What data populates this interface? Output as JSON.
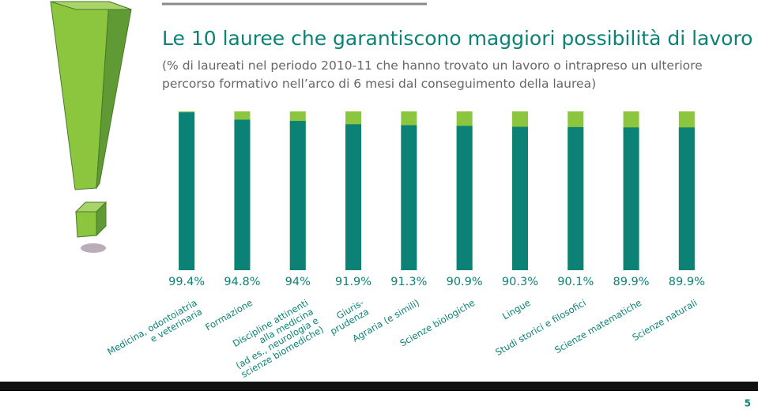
{
  "chart_data": {
    "type": "bar",
    "title": "Le 10 lauree che garantiscono maggiori possibilità di lavoro",
    "subtitle": "(% di laureati nel periodo 2010-11 che hanno trovato un lavoro o intrapreso un ulteriore percorso formativo nell’arco di 6 mesi dal conseguimento della laurea)",
    "categories": [
      "Medicina, odontoiatria\ne veterinaria",
      "Formazione",
      "Discipline attinenti\nalla medicina\n(ad es., neurologia e\nscienze biomediche)",
      "Giuris-\nprudenza",
      "Agraria (e simili)",
      "Scienze biologiche",
      "Lingue",
      "Studi storici e filosofici",
      "Scienze matematiche",
      "Scienze naturali"
    ],
    "values": [
      99.4,
      94.8,
      94,
      91.9,
      91.3,
      90.9,
      90.3,
      90.1,
      89.9,
      89.9
    ],
    "value_labels": [
      "99.4%",
      "94.8%",
      "94%",
      "91.9%",
      "91.3%",
      "90.9%",
      "90.3%",
      "90.1%",
      "89.9%",
      "89.9%"
    ],
    "color": "#0b8275",
    "track_color": "#8cc63f",
    "ylim": [
      0,
      100
    ],
    "page_number": "5"
  }
}
